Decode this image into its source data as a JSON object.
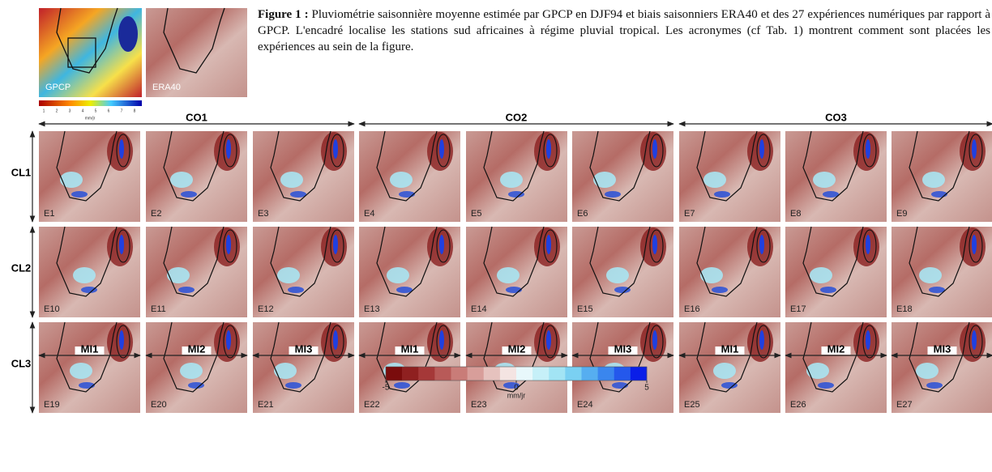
{
  "inset": {
    "gpcp_label": "GPCP",
    "era40_label": "ERA40",
    "colorbar_ticks": [
      1,
      2,
      3,
      4,
      5,
      6,
      7,
      8
    ],
    "colorbar_unit": "mm/jr"
  },
  "caption": {
    "label": "Figure 1 :",
    "text": "Pluviométrie saisonnière moyenne estimée par GPCP en DJF94 et biais saisonniers ERA40 et des 27 expériences numériques par rapport à GPCP. L'encadré localise les stations sud africaines à régime pluvial tropical. Les acronymes (cf Tab. 1) montrent comment sont placées les expériences au sein de la figure."
  },
  "column_groups": [
    "CO1",
    "CO2",
    "CO3"
  ],
  "column_subgroups": [
    "MI1",
    "MI2",
    "MI3",
    "MI1",
    "MI2",
    "MI3",
    "MI1",
    "MI2",
    "MI3"
  ],
  "rows": [
    "CL1",
    "CL2",
    "CL3"
  ],
  "panels": [
    [
      "E1",
      "E2",
      "E3",
      "E4",
      "E5",
      "E6",
      "E7",
      "E8",
      "E9"
    ],
    [
      "E10",
      "E11",
      "E12",
      "E13",
      "E14",
      "E15",
      "E16",
      "E17",
      "E18"
    ],
    [
      "E19",
      "E20",
      "E21",
      "E22",
      "E23",
      "E24",
      "E25",
      "E26",
      "E27"
    ]
  ],
  "colorbar": {
    "ticks": [
      -5,
      0,
      5
    ],
    "unit": "mm/jr"
  }
}
